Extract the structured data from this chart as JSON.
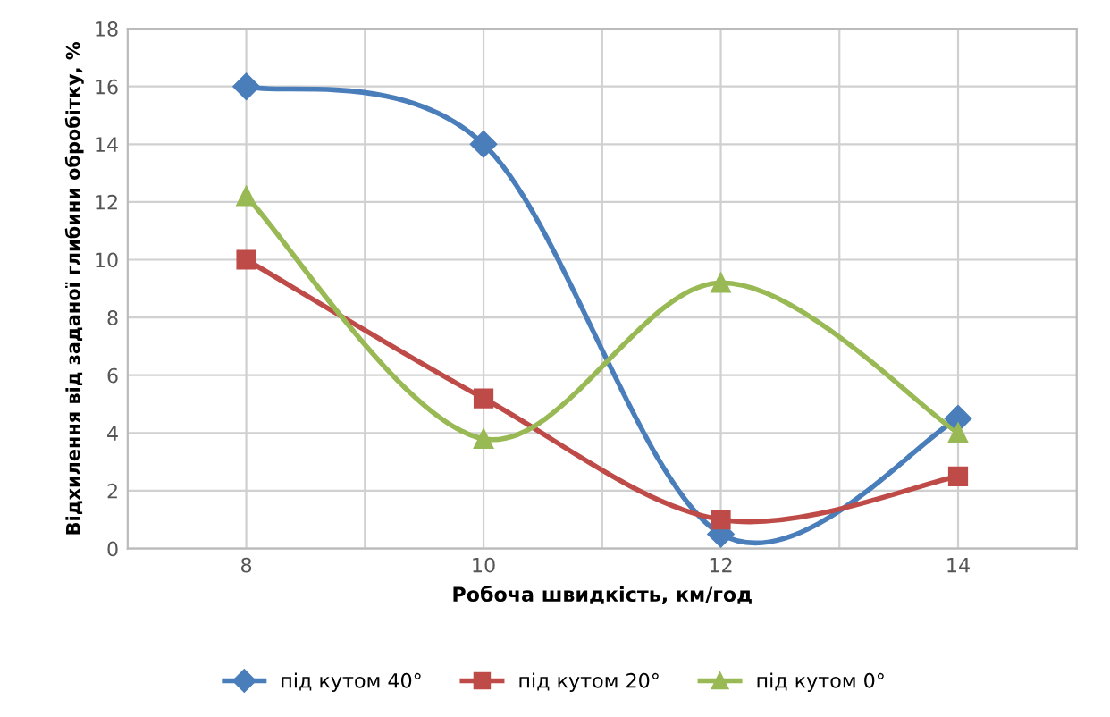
{
  "chart_data": {
    "type": "line",
    "xlabel": "Робоча швидкість, км/год",
    "ylabel": "Відхилення від заданої глибини обробітку, %",
    "x": [
      8,
      10,
      12,
      14
    ],
    "xlim": [
      7,
      15
    ],
    "xticks": [
      8,
      {
        "value": 9,
        "label": null
      },
      10,
      {
        "value": 11,
        "label": null
      },
      12,
      {
        "value": 13,
        "label": null
      },
      14
    ],
    "ylim": [
      0,
      18
    ],
    "yticks": [
      0,
      2,
      4,
      6,
      8,
      10,
      12,
      14,
      16,
      18
    ],
    "grid": true,
    "legend": "bottom",
    "line_style": "solid",
    "series": [
      {
        "name": "під кутом 40°",
        "color": "#4a7ebb",
        "marker": "diamond",
        "values": [
          16,
          14,
          0.5,
          4.5
        ]
      },
      {
        "name": "під кутом 20°",
        "color": "#be4b48",
        "marker": "square",
        "values": [
          10,
          5.2,
          1,
          2.5
        ]
      },
      {
        "name": "під кутом 0°",
        "color": "#98b954",
        "marker": "triangle",
        "values": [
          12.2,
          3.8,
          9.2,
          4.0
        ]
      }
    ]
  }
}
